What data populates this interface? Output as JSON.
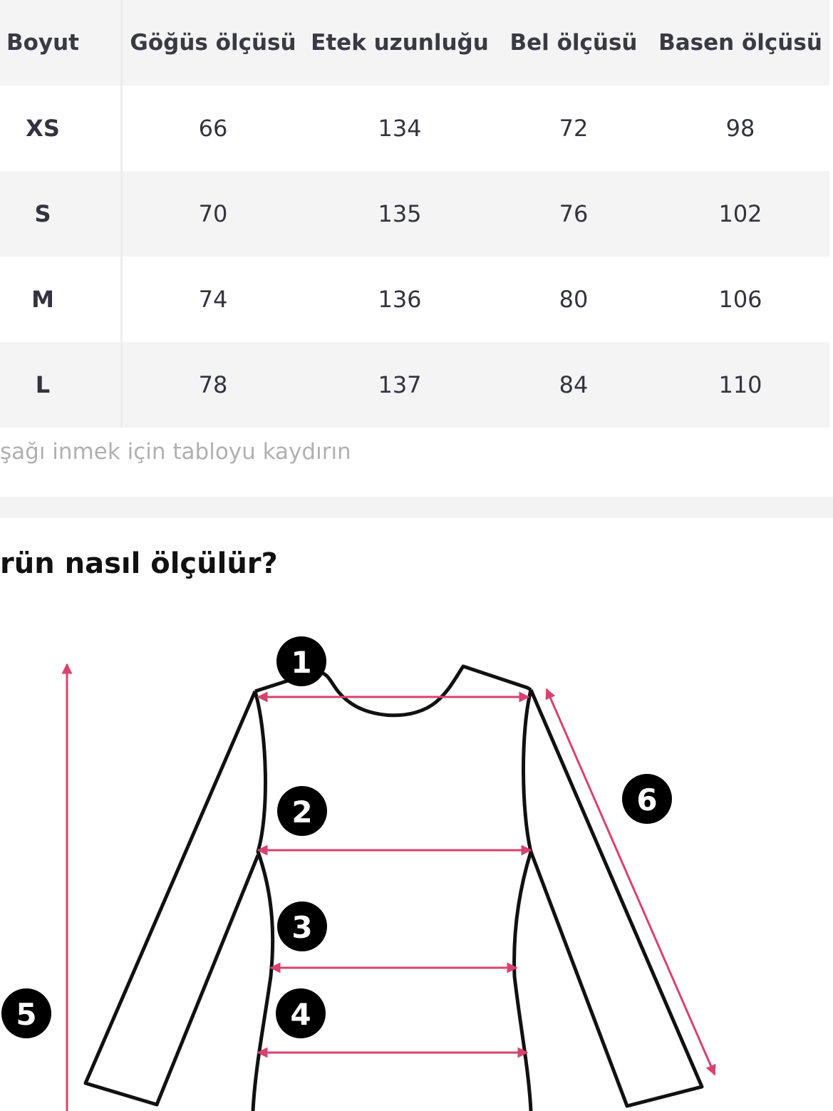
{
  "table": {
    "headers": [
      "Boyut",
      "Göğüs ölçüsü",
      "Etek uzunluğu",
      "Bel ölçüsü",
      "Basen ölçüsü"
    ],
    "rows": [
      [
        "XS",
        "66",
        "134",
        "72",
        "98"
      ],
      [
        "S",
        "70",
        "135",
        "76",
        "102"
      ],
      [
        "M",
        "74",
        "136",
        "80",
        "106"
      ],
      [
        "L",
        "78",
        "137",
        "84",
        "110"
      ]
    ]
  },
  "scroll_hint": "şağı inmek için tabloyu kaydırın",
  "section_title": "rün nasıl ölçülür?",
  "diagram": {
    "markers": [
      "1",
      "2",
      "3",
      "4",
      "5",
      "6"
    ],
    "arrow_color": "#d9426e",
    "marker_color": "#000000"
  }
}
